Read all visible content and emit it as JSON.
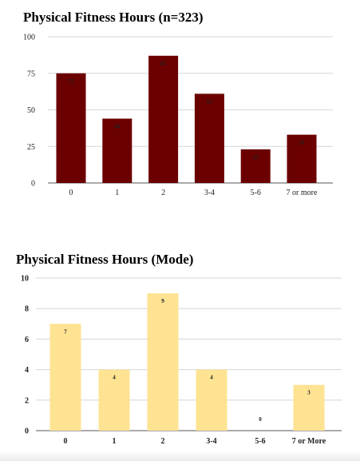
{
  "chart_data": [
    {
      "type": "bar",
      "title": "Physical Fitness Hours (n=323)",
      "categories": [
        "0",
        "1",
        "2",
        "3-4",
        "5-6",
        "7 or more"
      ],
      "values": [
        75,
        44,
        87,
        61,
        23,
        33
      ],
      "value_labels": [
        "75",
        "44",
        "87",
        "61",
        "23",
        "33"
      ],
      "ylim": [
        0,
        100
      ],
      "yticks": [
        0,
        25,
        50,
        75,
        100
      ],
      "xlabel": "",
      "ylabel": "",
      "grid": true,
      "legend": "none",
      "bar_color": "#6b0000",
      "label_color": "#ffffff"
    },
    {
      "type": "bar",
      "title": "Physical Fitness Hours (Mode)",
      "categories": [
        "0",
        "1",
        "2",
        "3-4",
        "5-6",
        "7 or More"
      ],
      "values": [
        7,
        4,
        9,
        4,
        0,
        3
      ],
      "value_labels": [
        "7",
        "4",
        "9",
        "4",
        "0",
        "3"
      ],
      "ylim": [
        0,
        10
      ],
      "yticks": [
        0,
        2,
        4,
        6,
        8,
        10
      ],
      "xlabel": "",
      "ylabel": "",
      "grid": true,
      "legend": "none",
      "bar_color": "#fde392",
      "label_color": "#000000"
    }
  ]
}
